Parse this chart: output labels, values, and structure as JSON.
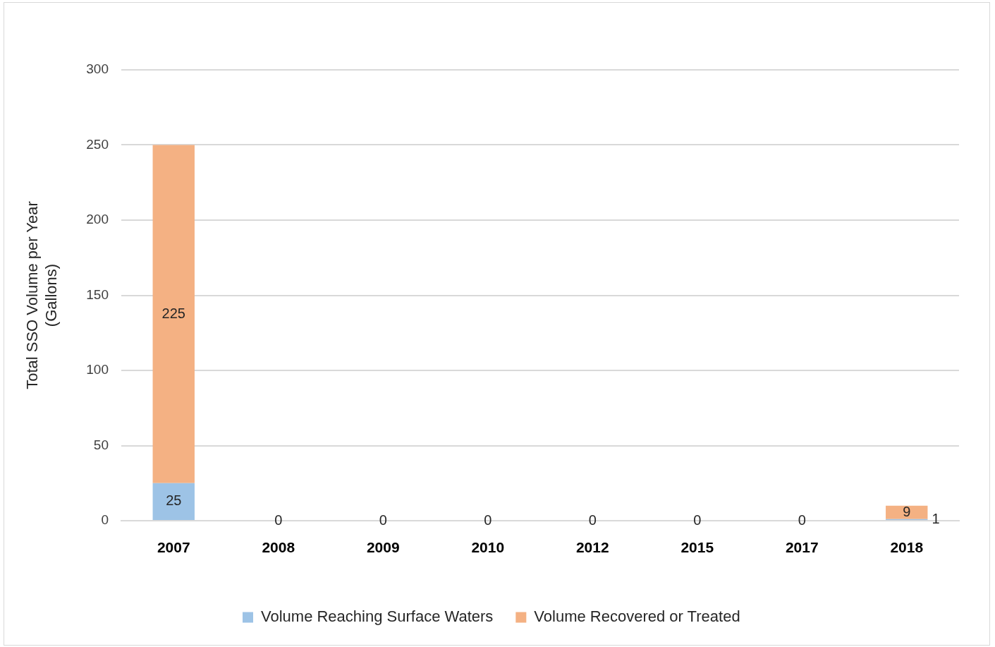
{
  "chart_data": {
    "type": "bar",
    "stacked": true,
    "categories": [
      "2007",
      "2008",
      "2009",
      "2010",
      "2012",
      "2015",
      "2017",
      "2018"
    ],
    "series": [
      {
        "name": "Volume Reaching Surface Waters",
        "color": "#9dc3e6",
        "values": [
          25,
          0,
          0,
          0,
          0,
          0,
          0,
          1
        ],
        "value_labels": [
          "25",
          null,
          null,
          null,
          null,
          null,
          null,
          "1"
        ]
      },
      {
        "name": "Volume Recovered or Treated",
        "color": "#f4b183",
        "values": [
          225,
          0,
          0,
          0,
          0,
          0,
          0,
          9
        ],
        "value_labels": [
          "225",
          "0",
          "0",
          "0",
          "0",
          "0",
          "0",
          "9"
        ]
      }
    ],
    "ylabel": "Total SSO Volume per Year (Gallons)",
    "ylim": [
      0,
      300
    ],
    "yticks": [
      0,
      50,
      100,
      150,
      200,
      250,
      300
    ],
    "grid": "y",
    "legend": "bottom"
  }
}
